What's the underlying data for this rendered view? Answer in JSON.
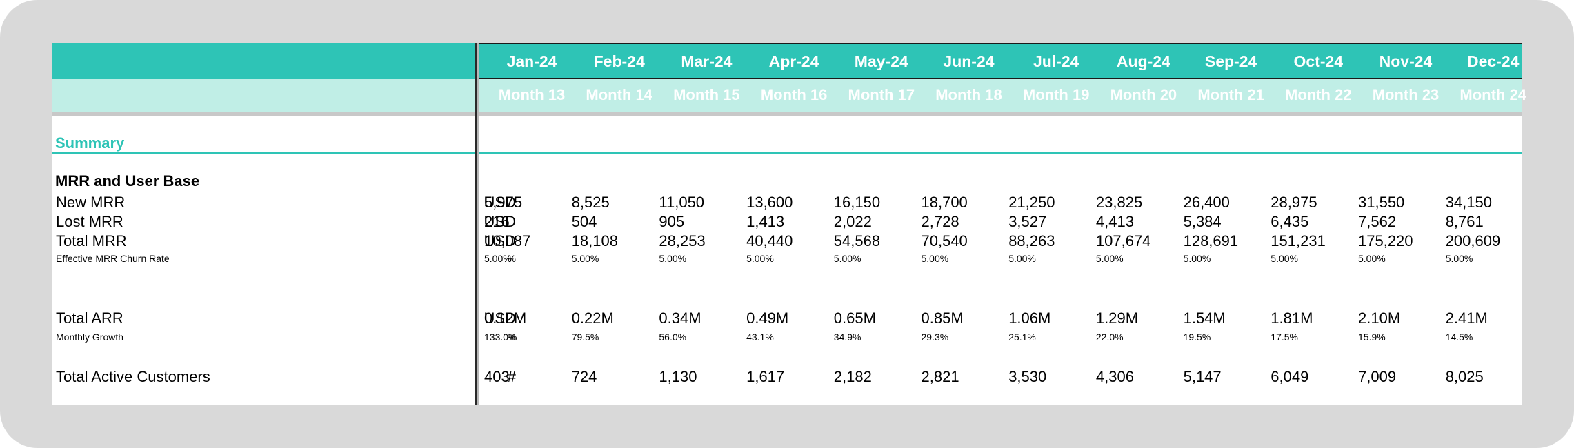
{
  "header": {
    "months": [
      "Jan-24",
      "Feb-24",
      "Mar-24",
      "Apr-24",
      "May-24",
      "Jun-24",
      "Jul-24",
      "Aug-24",
      "Sep-24",
      "Oct-24",
      "Nov-24",
      "Dec-24"
    ],
    "periods": [
      "Month 13",
      "Month 14",
      "Month 15",
      "Month 16",
      "Month 17",
      "Month 18",
      "Month 19",
      "Month 20",
      "Month 21",
      "Month 22",
      "Month 23",
      "Month 24"
    ]
  },
  "summary_title": "Summary",
  "section_title": "MRR and User Base",
  "rows": [
    {
      "label": "New MRR",
      "unit": "USD",
      "size": "big",
      "values": [
        "5,975",
        "8,525",
        "11,050",
        "13,600",
        "16,150",
        "18,700",
        "21,250",
        "23,825",
        "26,400",
        "28,975",
        "31,550",
        "34,150"
      ]
    },
    {
      "label": "Lost MRR",
      "unit": "USD",
      "size": "big",
      "values": [
        "216",
        "504",
        "905",
        "1,413",
        "2,022",
        "2,728",
        "3,527",
        "4,413",
        "5,384",
        "6,435",
        "7,562",
        "8,761"
      ]
    },
    {
      "label": "Total MRR",
      "unit": "USD",
      "size": "big",
      "values": [
        "10,087",
        "18,108",
        "28,253",
        "40,440",
        "54,568",
        "70,540",
        "88,263",
        "107,674",
        "128,691",
        "151,231",
        "175,220",
        "200,609"
      ]
    },
    {
      "label": "Effective MRR Churn Rate",
      "unit": "%",
      "size": "small",
      "values": [
        "5.00%",
        "5.00%",
        "5.00%",
        "5.00%",
        "5.00%",
        "5.00%",
        "5.00%",
        "5.00%",
        "5.00%",
        "5.00%",
        "5.00%",
        "5.00%"
      ]
    },
    {
      "label": "Total ARR",
      "unit": "USD",
      "size": "big",
      "values": [
        "0.12M",
        "0.22M",
        "0.34M",
        "0.49M",
        "0.65M",
        "0.85M",
        "1.06M",
        "1.29M",
        "1.54M",
        "1.81M",
        "2.10M",
        "2.41M"
      ]
    },
    {
      "label": "Monthly Growth",
      "unit": "%",
      "size": "small",
      "values": [
        "133.0%",
        "79.5%",
        "56.0%",
        "43.1%",
        "34.9%",
        "29.3%",
        "25.1%",
        "22.0%",
        "19.5%",
        "17.5%",
        "15.9%",
        "14.5%"
      ]
    },
    {
      "label": "Total Active Customers",
      "unit": "#",
      "size": "big",
      "values": [
        "403",
        "724",
        "1,130",
        "1,617",
        "2,182",
        "2,821",
        "3,530",
        "4,306",
        "5,147",
        "6,049",
        "7,009",
        "8,025"
      ]
    }
  ],
  "colors": {
    "header_dark": "#2ec4b6",
    "header_light": "#c0eee6",
    "frame": "#d9d9d9"
  }
}
